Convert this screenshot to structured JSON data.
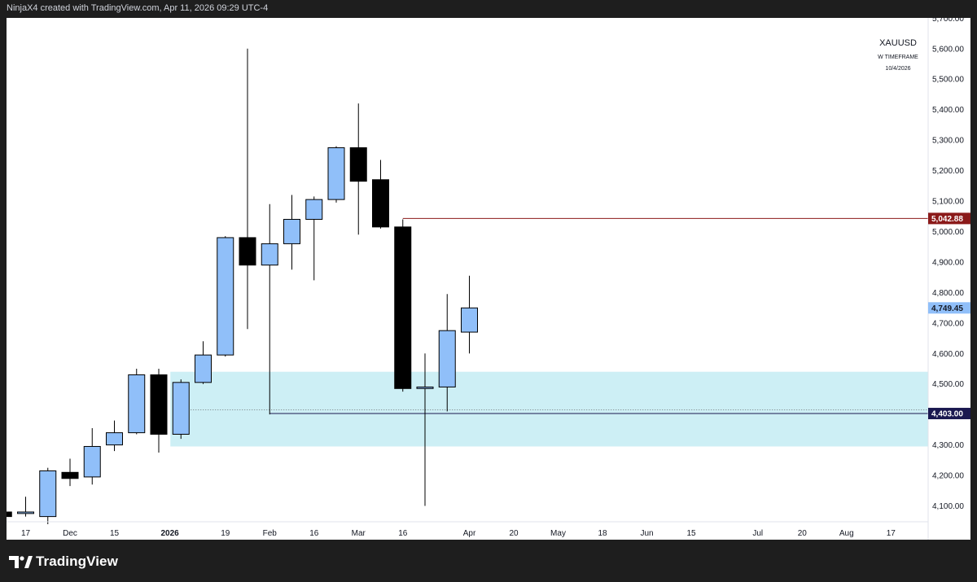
{
  "header": {
    "credit": "NinjaX4 created with TradingView.com, Apr 11, 2026 09:29 UTC-4"
  },
  "watermark": {
    "symbol": "XAUUSD",
    "timeframe": "W TIMEFRAME",
    "date": "10/4/2026"
  },
  "footer": {
    "brand": "TradingView",
    "logo_icon": "tradingview-logo-icon"
  },
  "colors": {
    "up": "#90bff9",
    "down": "#000000",
    "zone": "#cdeff5",
    "resistance": "#8b1a1a",
    "support": "#1a1850",
    "current": "#90bff9"
  },
  "chart_data": {
    "type": "candlestick",
    "symbol": "XAUUSD",
    "timeframe": "W",
    "ylim": [
      4050,
      5700
    ],
    "y_ticks": [
      4100,
      4200,
      4300,
      4400,
      4500,
      4600,
      4700,
      4800,
      4900,
      5000,
      5100,
      5200,
      5300,
      5400,
      5500,
      5600,
      5700
    ],
    "y_tick_labels": [
      "4,100.00",
      "4,200.00",
      "4,300.00",
      "4,400.00",
      "4,500.00",
      "4,600.00",
      "4,700.00",
      "4,800.00",
      "4,900.00",
      "5,000.00",
      "5,100.00",
      "5,200.00",
      "5,300.00",
      "5,400.00",
      "5,500.00",
      "5,600.00",
      "5,700.00"
    ],
    "x_ticks": [
      {
        "label": "17",
        "week": 0,
        "bold": false
      },
      {
        "label": "Dec",
        "week": 2,
        "bold": false
      },
      {
        "label": "15",
        "week": 4,
        "bold": false
      },
      {
        "label": "2026",
        "week": 6.5,
        "bold": true
      },
      {
        "label": "19",
        "week": 9,
        "bold": false
      },
      {
        "label": "Feb",
        "week": 11,
        "bold": false
      },
      {
        "label": "16",
        "week": 13,
        "bold": false
      },
      {
        "label": "Mar",
        "week": 15,
        "bold": false
      },
      {
        "label": "16",
        "week": 17,
        "bold": false
      },
      {
        "label": "Apr",
        "week": 20,
        "bold": false
      },
      {
        "label": "20",
        "week": 22,
        "bold": false
      },
      {
        "label": "May",
        "week": 24,
        "bold": false
      },
      {
        "label": "18",
        "week": 26,
        "bold": false
      },
      {
        "label": "Jun",
        "week": 28,
        "bold": false
      },
      {
        "label": "15",
        "week": 30,
        "bold": false
      },
      {
        "label": "Jul",
        "week": 33,
        "bold": false
      },
      {
        "label": "20",
        "week": 35,
        "bold": false
      },
      {
        "label": "Aug",
        "week": 37,
        "bold": false
      },
      {
        "label": "17",
        "week": 39,
        "bold": false
      }
    ],
    "candles": [
      {
        "week": -1,
        "open": 4080,
        "high": 4095,
        "low": 4060,
        "close": 4065
      },
      {
        "week": 0,
        "open": 4075,
        "high": 4130,
        "low": 4065,
        "close": 4080
      },
      {
        "week": 1,
        "open": 4065,
        "high": 4225,
        "low": 4040,
        "close": 4215
      },
      {
        "week": 2,
        "open": 4210,
        "high": 4255,
        "low": 4165,
        "close": 4190
      },
      {
        "week": 3,
        "open": 4195,
        "high": 4355,
        "low": 4170,
        "close": 4295
      },
      {
        "week": 4,
        "open": 4300,
        "high": 4380,
        "low": 4280,
        "close": 4340
      },
      {
        "week": 5,
        "open": 4340,
        "high": 4550,
        "low": 4335,
        "close": 4530
      },
      {
        "week": 6,
        "open": 4530,
        "high": 4550,
        "low": 4275,
        "close": 4335
      },
      {
        "week": 7,
        "open": 4335,
        "high": 4515,
        "low": 4320,
        "close": 4505
      },
      {
        "week": 8,
        "open": 4505,
        "high": 4640,
        "low": 4500,
        "close": 4595
      },
      {
        "week": 9,
        "open": 4595,
        "high": 4985,
        "low": 4590,
        "close": 4980
      },
      {
        "week": 10,
        "open": 4980,
        "high": 5600,
        "low": 4680,
        "close": 4890
      },
      {
        "week": 11,
        "open": 4890,
        "high": 5090,
        "low": 4400,
        "close": 4960
      },
      {
        "week": 12,
        "open": 4960,
        "high": 5120,
        "low": 4875,
        "close": 5040
      },
      {
        "week": 13,
        "open": 5040,
        "high": 5115,
        "low": 4840,
        "close": 5105
      },
      {
        "week": 14,
        "open": 5105,
        "high": 5280,
        "low": 5095,
        "close": 5275
      },
      {
        "week": 15,
        "open": 5275,
        "high": 5420,
        "low": 4990,
        "close": 5165
      },
      {
        "week": 16,
        "open": 5170,
        "high": 5235,
        "low": 5010,
        "close": 5015
      },
      {
        "week": 17,
        "open": 5015,
        "high": 5040,
        "low": 4475,
        "close": 4485
      },
      {
        "week": 18,
        "open": 4485,
        "high": 4600,
        "low": 4100,
        "close": 4490
      },
      {
        "week": 19,
        "open": 4490,
        "high": 4795,
        "low": 4410,
        "close": 4675
      },
      {
        "week": 20,
        "open": 4670,
        "high": 4855,
        "low": 4600,
        "close": 4749.45
      }
    ],
    "zone": {
      "from_week": 7,
      "low": 4295,
      "high": 4540
    },
    "levels": [
      {
        "name": "resistance",
        "price": 5042.88,
        "label": "5,042.88",
        "from_week": 17,
        "style": "solid"
      },
      {
        "name": "support",
        "price": 4403.0,
        "label": "4,403.00",
        "from_week": 11,
        "style": "solid"
      },
      {
        "name": "current",
        "price": 4749.45,
        "label": "4,749.45",
        "from_week": null,
        "style": "none"
      }
    ],
    "dotted_line": {
      "price": 4415,
      "from_week": 7
    }
  }
}
